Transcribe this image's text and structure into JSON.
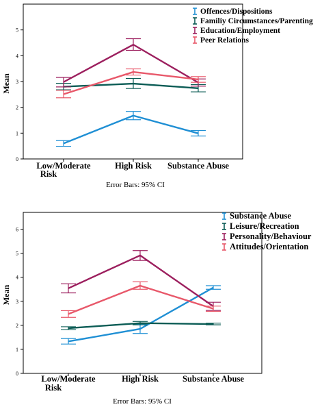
{
  "chart_data": [
    {
      "type": "line",
      "categories": [
        "Low/Moderate Risk",
        "High Risk",
        "Substance Abuse"
      ],
      "ylabel": "Mean",
      "ylim": [
        0,
        6
      ],
      "yticks": [
        0,
        1,
        2,
        3,
        4,
        5
      ],
      "grid": false,
      "legend_placement": "top-right",
      "error_bars": "95% CI",
      "note": "Error Bars: 95% CI",
      "series": [
        {
          "name": "Offences/Dispositions",
          "color": "#1f8fd4",
          "values": [
            0.6,
            1.68,
            0.99
          ],
          "ci_low": [
            0.49,
            1.52,
            0.89
          ],
          "ci_high": [
            0.71,
            1.84,
            1.1
          ]
        },
        {
          "name": "Familiy Circumstances/Parenting",
          "color": "#0b5c55",
          "values": [
            2.8,
            2.92,
            2.74
          ],
          "ci_low": [
            2.68,
            2.73,
            2.6
          ],
          "ci_high": [
            2.93,
            3.12,
            2.88
          ]
        },
        {
          "name": "Education/Employment",
          "color": "#9c1f5e",
          "values": [
            2.98,
            4.43,
            2.96
          ],
          "ci_low": [
            2.79,
            4.21,
            2.82
          ],
          "ci_high": [
            3.16,
            4.66,
            3.1
          ]
        },
        {
          "name": "Peer Relations",
          "color": "#e8586a",
          "values": [
            2.51,
            3.37,
            3.08
          ],
          "ci_low": [
            2.37,
            3.25,
            2.97
          ],
          "ci_high": [
            2.66,
            3.49,
            3.19
          ]
        }
      ]
    },
    {
      "type": "line",
      "categories": [
        "Low/Moderate Risk",
        "High Risk",
        "Substance Abuse"
      ],
      "ylabel": "Mean",
      "ylim": [
        0,
        6.7
      ],
      "yticks": [
        0,
        1,
        2,
        3,
        4,
        5,
        6
      ],
      "grid": false,
      "legend_placement": "top-right",
      "error_bars": "95% CI",
      "note": "Error Bars: 95% CI",
      "series": [
        {
          "name": "Substance Abuse",
          "color": "#1f8fd4",
          "values": [
            1.33,
            1.85,
            3.57
          ],
          "ci_low": [
            1.22,
            1.66,
            3.5
          ],
          "ci_high": [
            1.45,
            2.05,
            3.65
          ]
        },
        {
          "name": "Leisure/Recreation",
          "color": "#0b5c55",
          "values": [
            1.88,
            2.09,
            2.05
          ],
          "ci_low": [
            1.82,
            2.02,
            2.02
          ],
          "ci_high": [
            1.94,
            2.16,
            2.09
          ]
        },
        {
          "name": "Personality/Behaviour",
          "color": "#9c1f5e",
          "values": [
            3.54,
            4.91,
            2.79
          ],
          "ci_low": [
            3.35,
            4.7,
            2.62
          ],
          "ci_high": [
            3.73,
            5.11,
            2.96
          ]
        },
        {
          "name": "Attitudes/Orientation",
          "color": "#e8586a",
          "values": [
            2.47,
            3.65,
            2.69
          ],
          "ci_low": [
            2.33,
            3.5,
            2.58
          ],
          "ci_high": [
            2.61,
            3.81,
            2.8
          ]
        }
      ]
    }
  ]
}
